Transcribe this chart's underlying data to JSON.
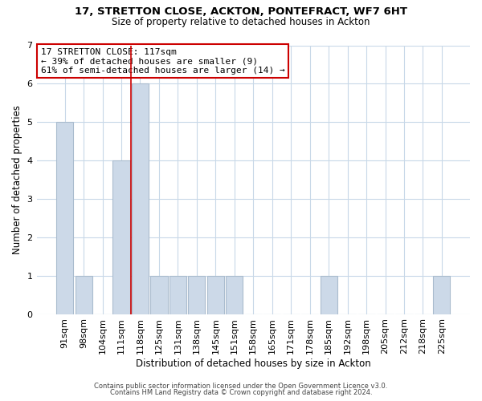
{
  "title_line1": "17, STRETTON CLOSE, ACKTON, PONTEFRACT, WF7 6HT",
  "title_line2": "Size of property relative to detached houses in Ackton",
  "xlabel": "Distribution of detached houses by size in Ackton",
  "ylabel": "Number of detached properties",
  "categories": [
    "91sqm",
    "98sqm",
    "104sqm",
    "111sqm",
    "118sqm",
    "125sqm",
    "131sqm",
    "138sqm",
    "145sqm",
    "151sqm",
    "158sqm",
    "165sqm",
    "171sqm",
    "178sqm",
    "185sqm",
    "192sqm",
    "198sqm",
    "205sqm",
    "212sqm",
    "218sqm",
    "225sqm"
  ],
  "values": [
    5,
    1,
    0,
    4,
    6,
    1,
    1,
    1,
    1,
    1,
    0,
    0,
    0,
    0,
    1,
    0,
    0,
    0,
    0,
    0,
    1
  ],
  "bar_color": "#ccd9e8",
  "bar_edgecolor": "#aabcce",
  "highlight_index": 4,
  "highlight_color": "#cc0000",
  "ylim": [
    0,
    7
  ],
  "yticks": [
    0,
    1,
    2,
    3,
    4,
    5,
    6,
    7
  ],
  "annotation_text": "17 STRETTON CLOSE: 117sqm\n← 39% of detached houses are smaller (9)\n61% of semi-detached houses are larger (14) →",
  "annotation_box_color": "#ffffff",
  "annotation_box_edgecolor": "#cc0000",
  "footer_line1": "Contains HM Land Registry data © Crown copyright and database right 2024.",
  "footer_line2": "Contains public sector information licensed under the Open Government Licence v3.0.",
  "background_color": "#ffffff",
  "grid_color": "#c8d8e8",
  "fig_width": 6.0,
  "fig_height": 5.0,
  "dpi": 100
}
